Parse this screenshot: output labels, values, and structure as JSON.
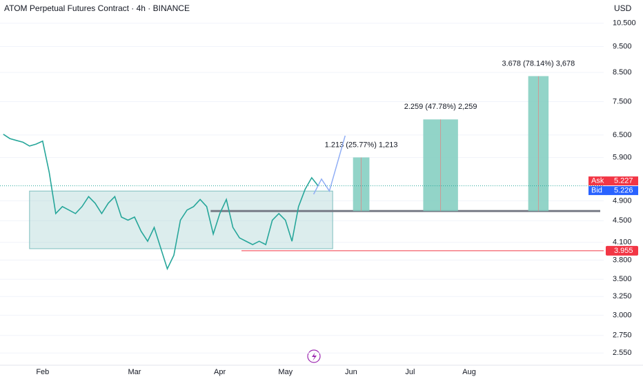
{
  "chart_data": {
    "type": "line",
    "title": "ATOM Perpetual Futures Contract · 4h · BINANCE",
    "currency": "USD",
    "color": "#26a69a",
    "log_scale": true,
    "grid": true,
    "ylim": [
      2.42,
      11.6
    ],
    "yticks": [
      {
        "value": 10.5,
        "label": "10.500"
      },
      {
        "value": 9.5,
        "label": "9.500"
      },
      {
        "value": 8.5,
        "label": "8.500"
      },
      {
        "value": 7.5,
        "label": "7.500"
      },
      {
        "value": 6.5,
        "label": "6.500"
      },
      {
        "value": 5.9,
        "label": "5.900"
      },
      {
        "value": 4.9,
        "label": "4.900"
      },
      {
        "value": 4.5,
        "label": "4.500"
      },
      {
        "value": 4.1,
        "label": "4.100"
      },
      {
        "value": 3.8,
        "label": "3.800"
      },
      {
        "value": 3.5,
        "label": "3.500"
      },
      {
        "value": 3.25,
        "label": "3.250"
      },
      {
        "value": 3.0,
        "label": "3.000"
      },
      {
        "value": 2.75,
        "label": "2.750"
      },
      {
        "value": 2.55,
        "label": "2.550"
      }
    ],
    "categories": [
      null,
      null,
      null,
      null,
      null,
      null,
      "Feb",
      null,
      null,
      null,
      null,
      null,
      null,
      null,
      null,
      null,
      null,
      null,
      null,
      null,
      "Mar",
      null,
      null,
      null,
      null,
      null,
      null,
      null,
      null,
      null,
      null,
      null,
      null,
      "Apr",
      null,
      null,
      null,
      null,
      null,
      null,
      null,
      null,
      null,
      "May",
      null,
      null,
      null,
      null,
      null,
      null,
      null,
      null,
      null,
      "Jun",
      null,
      null,
      null,
      null,
      null,
      null,
      null,
      null,
      "Jul",
      null,
      null,
      null,
      null,
      null,
      null,
      null,
      null,
      "Aug",
      null,
      null,
      null,
      null,
      null,
      null,
      null,
      null,
      null,
      null,
      null,
      null,
      null,
      null,
      null,
      null,
      null,
      null,
      null,
      null
    ],
    "values": [
      6.52,
      6.4,
      6.35,
      6.3,
      6.2,
      6.25,
      6.33,
      5.54,
      4.64,
      4.78,
      4.71,
      4.64,
      4.78,
      4.99,
      4.85,
      4.64,
      4.85,
      4.99,
      4.57,
      4.51,
      4.57,
      4.3,
      4.12,
      4.37,
      4.0,
      3.66,
      3.88,
      4.51,
      4.71,
      4.78,
      4.93,
      4.78,
      4.25,
      4.64,
      4.93,
      4.37,
      4.18,
      4.12,
      4.06,
      4.12,
      4.06,
      4.51,
      4.64,
      4.51,
      4.12,
      4.78,
      5.15,
      5.41,
      5.22,
      null,
      null,
      null,
      null,
      null,
      null,
      null,
      null,
      null,
      null,
      null,
      null,
      null,
      null,
      null,
      null,
      null,
      null,
      null,
      null,
      null,
      null,
      null,
      null,
      null,
      null,
      null,
      null,
      null,
      null,
      null,
      null,
      null,
      null,
      null,
      null,
      null,
      null,
      null,
      null,
      null,
      null,
      null
    ],
    "range_box": {
      "from": 4.0,
      "to": 50.2,
      "low": 3.99,
      "high": 5.11,
      "color": "#a7d3d3"
    },
    "support": {
      "value": 4.69,
      "from": 31.6,
      "color": "#787b86"
    },
    "stop_level": {
      "value": 3.955,
      "from": 36.3,
      "color": "#f23645"
    },
    "forecast": {
      "x": [
        47.3,
        48.5,
        49.7,
        52.1
      ],
      "values": [
        5.04,
        5.38,
        5.11,
        6.48
      ],
      "color": "#90aef5"
    },
    "projection_base": 4.69,
    "projection_color": "#7fcdbe",
    "projections": [
      {
        "label": "1.213 (25.77%) 1,213",
        "value": 1.213,
        "from": 53.3,
        "to": 55.8
      },
      {
        "label": "2.259 (47.78%) 2,259",
        "value": 2.259,
        "from": 64.0,
        "to": 69.3
      },
      {
        "label": "3.678 (78.14%) 3,678",
        "value": 3.678,
        "from": 80.0,
        "to": 83.1
      }
    ],
    "ask": {
      "label": "Ask",
      "value": 5.227,
      "color": "#f23645"
    },
    "bid": {
      "label": "Bid",
      "value": 5.226,
      "color": "#2962ff"
    }
  }
}
